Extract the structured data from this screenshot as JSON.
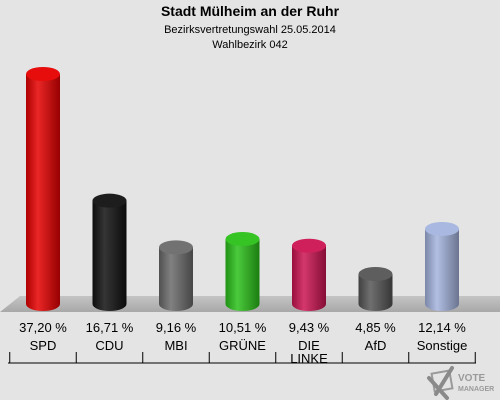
{
  "chart_data": {
    "type": "bar",
    "title": "Stadt Mülheim an der Ruhr",
    "subtitle": "Bezirksvertretungswahl 25.05.2014",
    "subtitle2": "Wahlbezirk 042",
    "categories": [
      {
        "key": "spd",
        "lines": [
          "SPD"
        ]
      },
      {
        "key": "cdu",
        "lines": [
          "CDU"
        ]
      },
      {
        "key": "mbi",
        "lines": [
          "MBI"
        ]
      },
      {
        "key": "gruene",
        "lines": [
          "GRÜNE"
        ]
      },
      {
        "key": "die-linke",
        "lines": [
          "DIE",
          "LINKE"
        ]
      },
      {
        "key": "afd",
        "lines": [
          "AfD"
        ]
      },
      {
        "key": "sonstige",
        "lines": [
          "Sonstige"
        ]
      }
    ],
    "values": [
      37.2,
      16.71,
      9.16,
      10.51,
      9.43,
      4.85,
      12.14
    ],
    "value_labels": [
      "37,20 %",
      "16,71 %",
      "9,16 %",
      "10,51 %",
      "9,43 %",
      "4,85 %",
      "12,14 %"
    ],
    "colors": [
      "#e60000",
      "#111111",
      "#6b6b6b",
      "#2bc11a",
      "#cc1452",
      "#555555",
      "#a4b4de"
    ],
    "ylim": [
      0,
      37.2
    ]
  },
  "watermark": {
    "line1": "VOTE",
    "line2": "MANAGER"
  }
}
